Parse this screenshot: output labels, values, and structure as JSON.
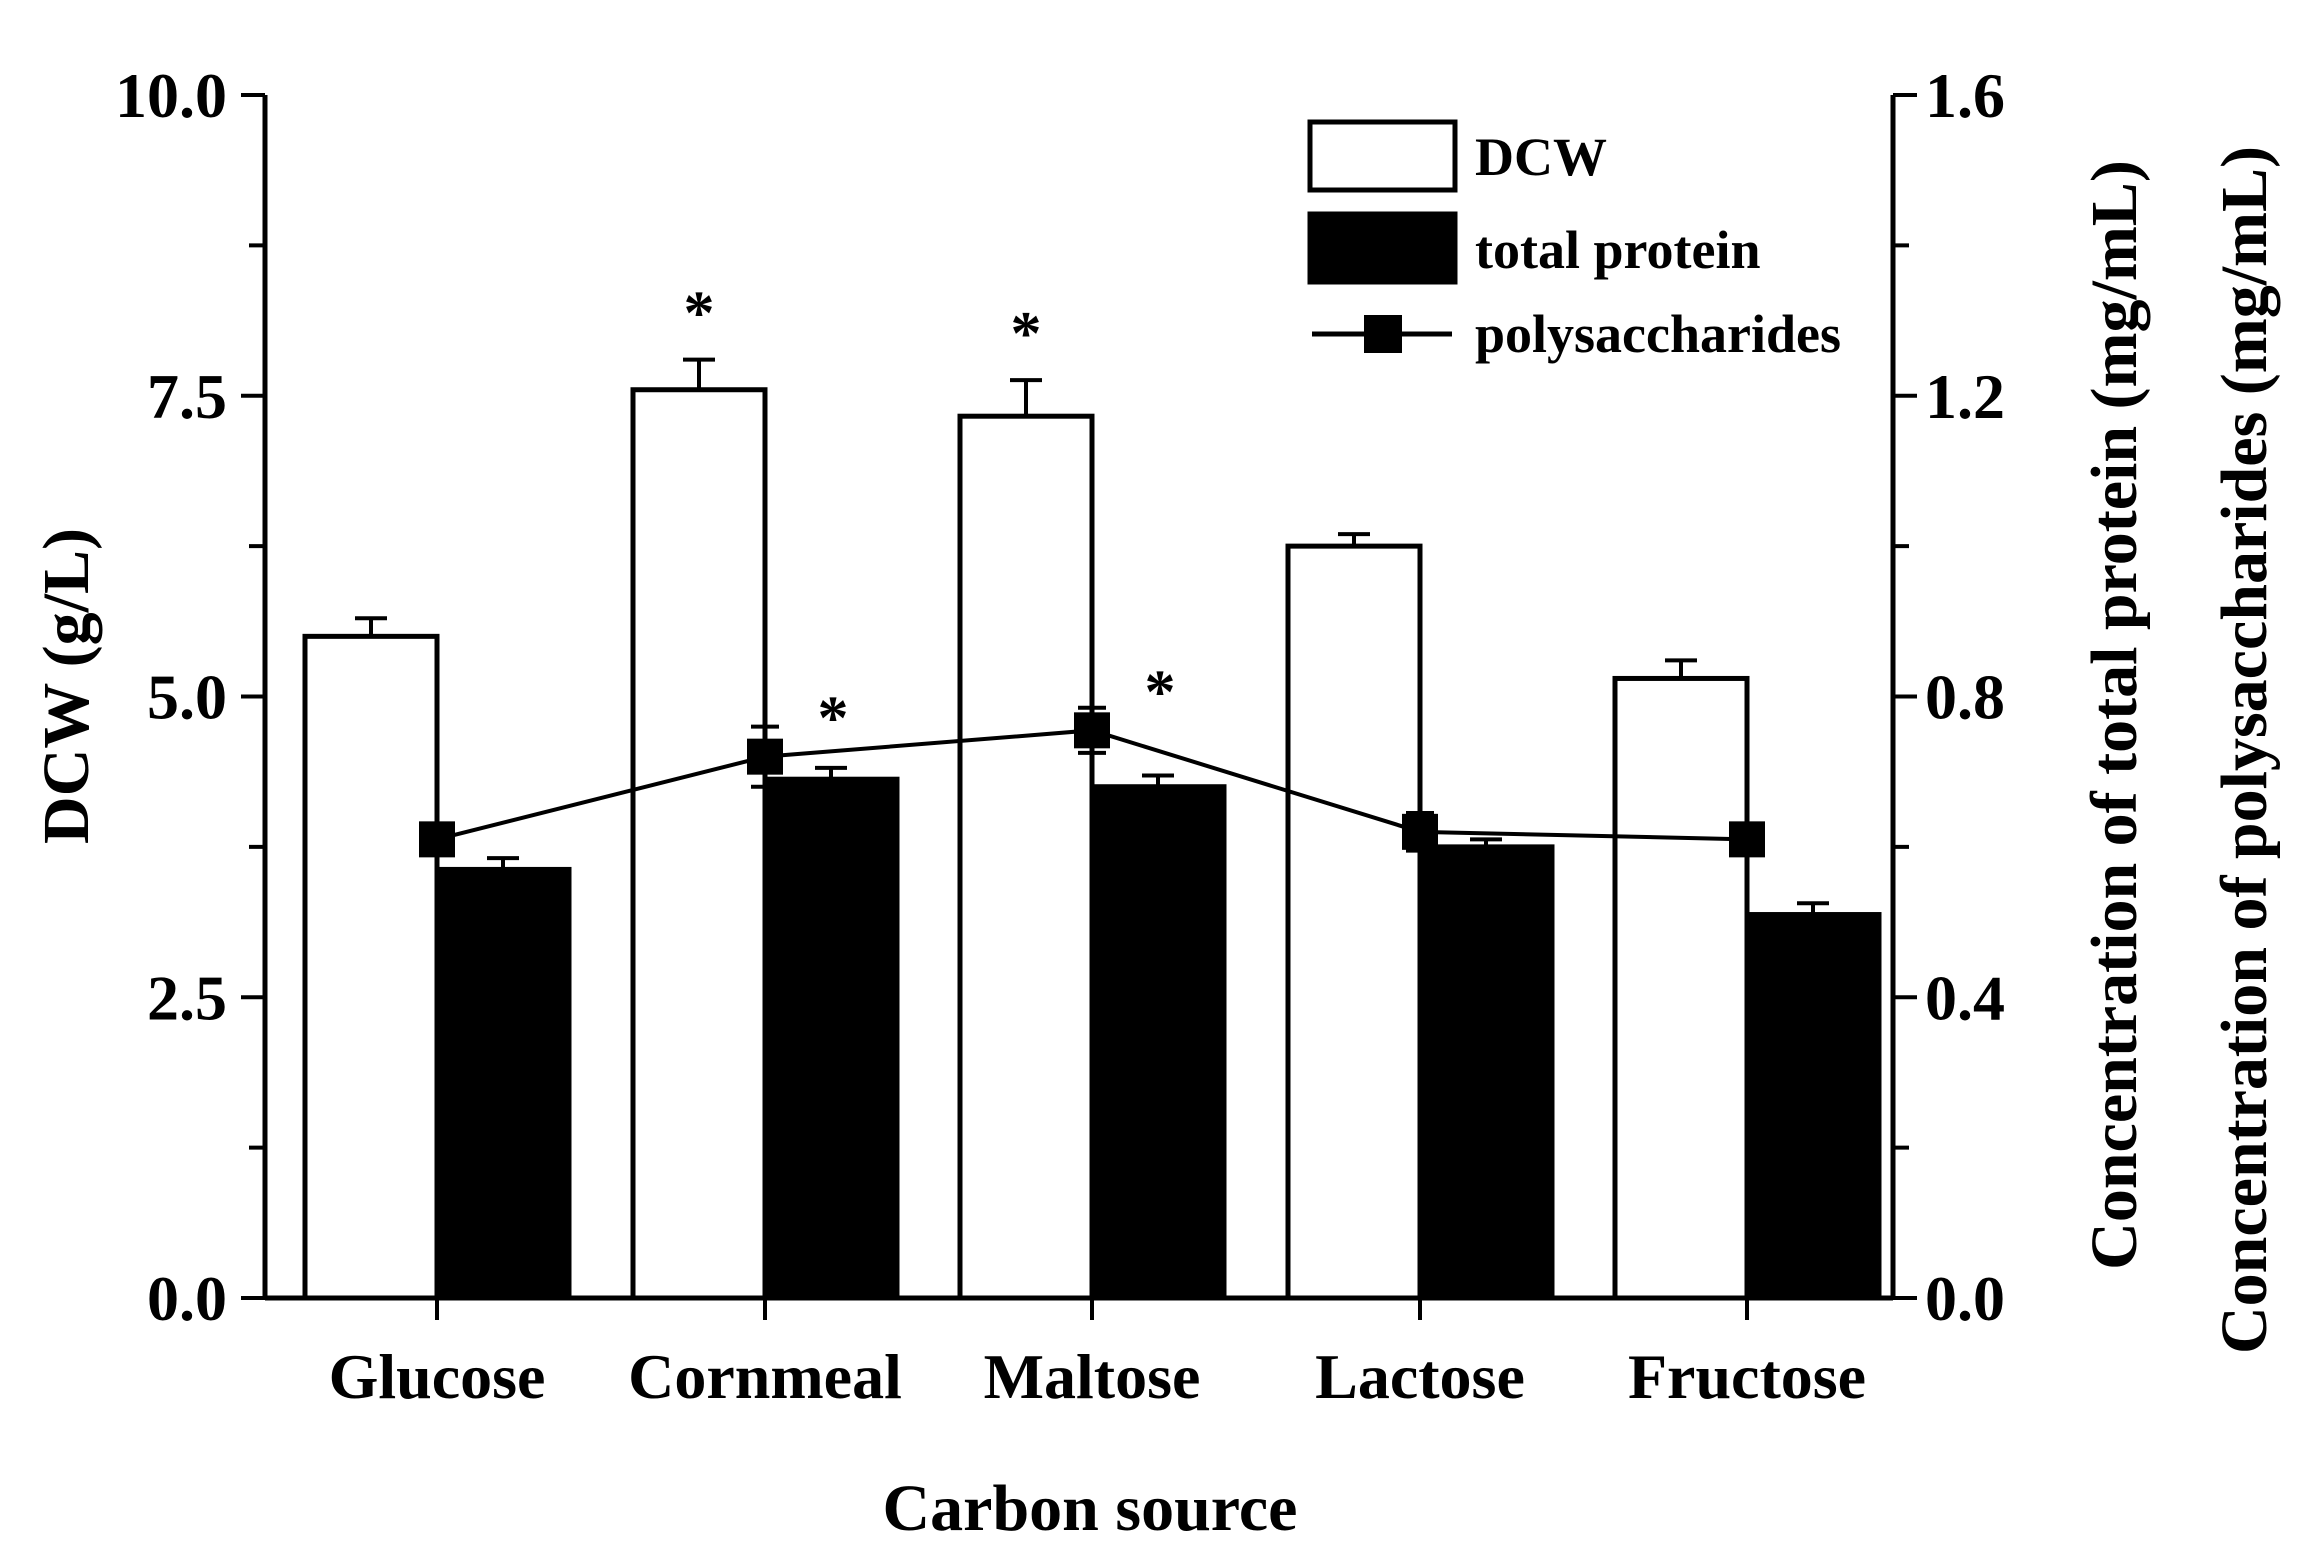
{
  "chart_data": {
    "type": "bar",
    "categories": [
      "Glucose",
      "Cornmeal",
      "Maltose",
      "Lactose",
      "Fructose"
    ],
    "xlabel": "Carbon source",
    "ylabel_left": "DCW (g/L)",
    "ylabel_right_1": "Concentration of total protein (mg/mL)",
    "ylabel_right_2": "Concentration of polysaccharides (mg/mL)",
    "ylim_left": [
      0,
      10
    ],
    "ylim_right": [
      0,
      1.6
    ],
    "left_ticks": [
      "0.0",
      "2.5",
      "5.0",
      "7.5",
      "10.0"
    ],
    "right_ticks": [
      "0.0",
      "0.4",
      "0.8",
      "1.2",
      "1.6"
    ],
    "legend": [
      "DCW",
      "total protein",
      "polysaccharides"
    ],
    "legend_position": "top-right",
    "significance_mark": "*",
    "series": [
      {
        "name": "DCW",
        "axis": "left",
        "style": "bar-open",
        "values": [
          5.5,
          7.55,
          7.33,
          6.25,
          5.15
        ],
        "errors": [
          0.15,
          0.25,
          0.3,
          0.1,
          0.15
        ],
        "significant": [
          false,
          true,
          true,
          false,
          false
        ]
      },
      {
        "name": "total protein",
        "axis": "right",
        "style": "bar-filled",
        "values": [
          0.57,
          0.69,
          0.68,
          0.6,
          0.51
        ],
        "errors": [
          0.015,
          0.015,
          0.015,
          0.01,
          0.015
        ],
        "significant": [
          false,
          false,
          false,
          false,
          false
        ]
      },
      {
        "name": "polysaccharides",
        "axis": "right",
        "style": "line-square",
        "values": [
          0.61,
          0.72,
          0.755,
          0.62,
          0.61
        ],
        "errors": [
          0.0,
          0.04,
          0.03,
          0.025,
          0.0
        ],
        "significant": [
          false,
          true,
          true,
          false,
          false
        ]
      }
    ]
  }
}
